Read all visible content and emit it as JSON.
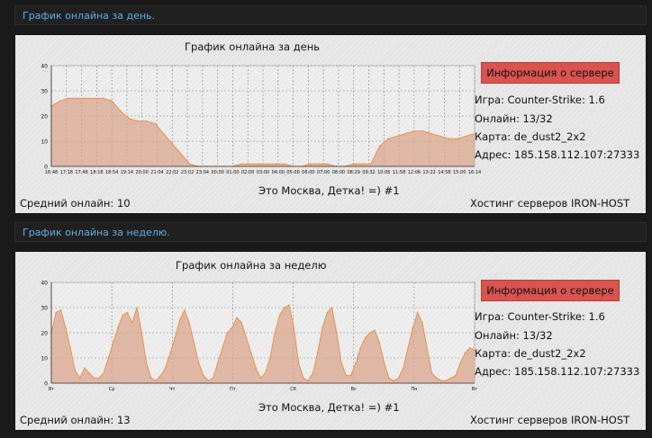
{
  "day": {
    "header": "График онлайна за день.",
    "chart_title": "График онлайна за день",
    "info_button": "Информация о сервере",
    "game": "Игра: Counter-Strike: 1.6",
    "online": "Онлайн: 13/32",
    "map": "Карта: de_dust2_2x2",
    "address": "Адрес: 185.158.112.107:27333",
    "server_name": "Это Москва, Детка! =) #1",
    "avg": "Средний онлайн: 10",
    "hosting": "Хостинг серверов IRON-HOST"
  },
  "week": {
    "header": "График онлайна за неделю.",
    "chart_title": "График онлайна за неделю",
    "info_button": "Информация о сервере",
    "game": "Игра: Counter-Strike: 1.6",
    "online": "Онлайн: 13/32",
    "map": "Карта: de_dust2_2x2",
    "address": "Адрес: 185.158.112.107:27333",
    "server_name": "Это Москва, Детка! =) #1",
    "avg": "Средний онлайн: 13",
    "hosting": "Хостинг серверов IRON-HOST"
  },
  "colors": {
    "fill": "#dba58e",
    "line": "#e8944c",
    "button": "#d9534f",
    "link": "#5fb0e8"
  },
  "chart_data": [
    {
      "type": "area",
      "title": "График онлайна за день",
      "ylim": [
        0,
        40
      ],
      "yticks": [
        0,
        10,
        20,
        30,
        40
      ],
      "xticks": [
        "16:48",
        "17:18",
        "17:48",
        "18:18",
        "18:54",
        "19:14",
        "20:00",
        "21:04",
        "22:02",
        "23:02",
        "23:04",
        "00:00",
        "01:00",
        "02:00",
        "03:00",
        "04:00",
        "05:00",
        "06:00",
        "07:00",
        "08:00",
        "08:29",
        "09:32",
        "10:06",
        "11:58",
        "12:06",
        "13:22",
        "14:58",
        "15:00",
        "16:14"
      ],
      "values": [
        24,
        26,
        27,
        27,
        27,
        27,
        27,
        26,
        22,
        19,
        18,
        18,
        17,
        13,
        9,
        5,
        1,
        0,
        0,
        0,
        0,
        0,
        1,
        1,
        1,
        1,
        1,
        1,
        0,
        0,
        1,
        1,
        1,
        0,
        0,
        1,
        1,
        1,
        8,
        11,
        12,
        13,
        14,
        14,
        13,
        12,
        11,
        11,
        12,
        13
      ],
      "grid": true
    },
    {
      "type": "area",
      "title": "График онлайна за неделю",
      "ylim": [
        0,
        40
      ],
      "yticks": [
        0,
        10,
        20,
        30,
        40
      ],
      "xticks": [
        "Вт",
        "Ср",
        "Чт",
        "Пт",
        "Сб",
        "Вс",
        "Пн",
        "Вт"
      ],
      "values": [
        20,
        28,
        29,
        22,
        14,
        5,
        2,
        6,
        4,
        2,
        2,
        4,
        10,
        16,
        22,
        27,
        28,
        24,
        30,
        20,
        8,
        2,
        1,
        3,
        6,
        12,
        18,
        25,
        29,
        24,
        16,
        8,
        3,
        1,
        2,
        8,
        14,
        20,
        22,
        26,
        24,
        18,
        12,
        6,
        2,
        4,
        10,
        20,
        27,
        30,
        31,
        22,
        8,
        2,
        1,
        4,
        12,
        22,
        28,
        30,
        20,
        8,
        3,
        3,
        8,
        14,
        18,
        20,
        21,
        16,
        8,
        2,
        1,
        2,
        6,
        14,
        22,
        28,
        24,
        14,
        4,
        2,
        1,
        1,
        2,
        3,
        8,
        12,
        14,
        13
      ],
      "grid": true
    }
  ]
}
